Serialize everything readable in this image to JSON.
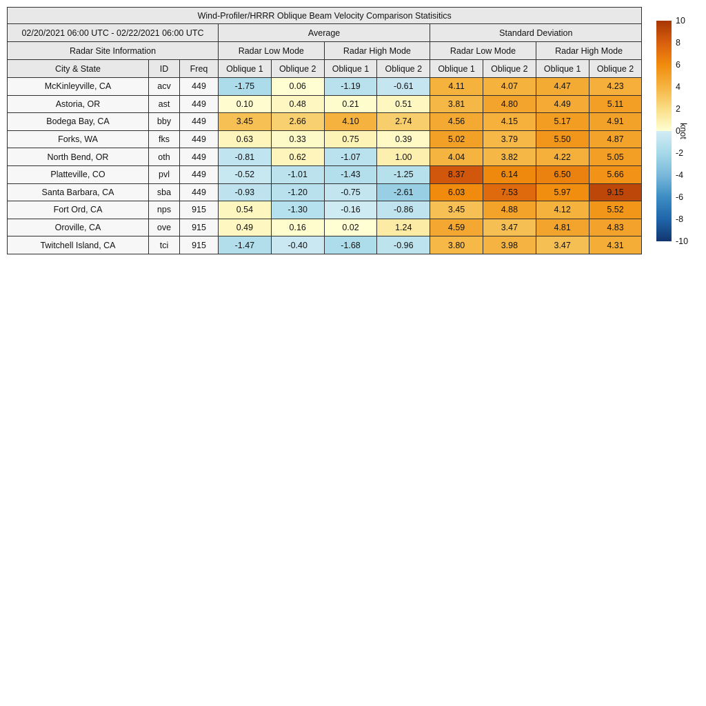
{
  "title": "Wind-Profiler/HRRR Oblique Beam Velocity Comparison Statisitics",
  "header": {
    "date_range": "02/20/2021 06:00 UTC - 02/22/2021 06:00 UTC",
    "group_average": "Average",
    "group_stddev": "Standard Deviation",
    "site_info": "Radar Site Information",
    "mode_low": "Radar Low Mode",
    "mode_high": "Radar High Mode",
    "city_state": "City & State",
    "id": "ID",
    "freq": "Freq",
    "oblique1": "Oblique 1",
    "oblique2": "Oblique 2"
  },
  "colorbar": {
    "label": "knot",
    "min": -10,
    "max": 10,
    "ticks": [
      10,
      8,
      6,
      4,
      2,
      0,
      -2,
      -4,
      -6,
      -8,
      -10
    ],
    "colormap": {
      "positive": [
        "#ffffd4",
        "#fade87",
        "#f5b440",
        "#f18c0e",
        "#d95f0e",
        "#a63603"
      ],
      "negative": [
        "#d2ecf4",
        "#a6d9e9",
        "#79b8da",
        "#3c8dc3",
        "#2065aa",
        "#12366e"
      ]
    }
  },
  "chart_data": {
    "type": "heatmap",
    "title": "Wind-Profiler/HRRR Oblique Beam Velocity Comparison Statisitics",
    "value_unit": "knot",
    "color_scale": {
      "min": -10,
      "max": 10
    },
    "columns": [
      "Average / Radar Low Mode / Oblique 1",
      "Average / Radar Low Mode / Oblique 2",
      "Average / Radar High Mode / Oblique 1",
      "Average / Radar High Mode / Oblique 2",
      "Standard Deviation / Radar Low Mode / Oblique 1",
      "Standard Deviation / Radar Low Mode / Oblique 2",
      "Standard Deviation / Radar High Mode / Oblique 1",
      "Standard Deviation / Radar High Mode / Oblique 2"
    ],
    "rows": [
      {
        "city": "McKinleyville, CA",
        "id": "acv",
        "freq": "449",
        "values": [
          -1.75,
          0.06,
          -1.19,
          -0.61,
          4.11,
          4.07,
          4.47,
          4.23
        ]
      },
      {
        "city": "Astoria, OR",
        "id": "ast",
        "freq": "449",
        "values": [
          0.1,
          0.48,
          0.21,
          0.51,
          3.81,
          4.8,
          4.49,
          5.11
        ]
      },
      {
        "city": "Bodega Bay, CA",
        "id": "bby",
        "freq": "449",
        "values": [
          3.45,
          2.66,
          4.1,
          2.74,
          4.56,
          4.15,
          5.17,
          4.91
        ]
      },
      {
        "city": "Forks, WA",
        "id": "fks",
        "freq": "449",
        "values": [
          0.63,
          0.33,
          0.75,
          0.39,
          5.02,
          3.79,
          5.5,
          4.87
        ]
      },
      {
        "city": "North Bend, OR",
        "id": "oth",
        "freq": "449",
        "values": [
          -0.81,
          0.62,
          -1.07,
          1.0,
          4.04,
          3.82,
          4.22,
          5.05
        ]
      },
      {
        "city": "Platteville, CO",
        "id": "pvl",
        "freq": "449",
        "values": [
          -0.52,
          -1.01,
          -1.43,
          -1.25,
          8.37,
          6.14,
          6.5,
          5.66
        ]
      },
      {
        "city": "Santa Barbara, CA",
        "id": "sba",
        "freq": "449",
        "values": [
          -0.93,
          -1.2,
          -0.75,
          -2.61,
          6.03,
          7.53,
          5.97,
          9.15
        ]
      },
      {
        "city": "Fort Ord, CA",
        "id": "nps",
        "freq": "915",
        "values": [
          0.54,
          -1.3,
          -0.16,
          -0.86,
          3.45,
          4.88,
          4.12,
          5.52
        ]
      },
      {
        "city": "Oroville, CA",
        "id": "ove",
        "freq": "915",
        "values": [
          0.49,
          0.16,
          0.02,
          1.24,
          4.59,
          3.47,
          4.81,
          4.83
        ]
      },
      {
        "city": "Twitchell Island, CA",
        "id": "tci",
        "freq": "915",
        "values": [
          -1.47,
          -0.4,
          -1.68,
          -0.96,
          3.8,
          3.98,
          3.47,
          4.31
        ]
      }
    ]
  }
}
